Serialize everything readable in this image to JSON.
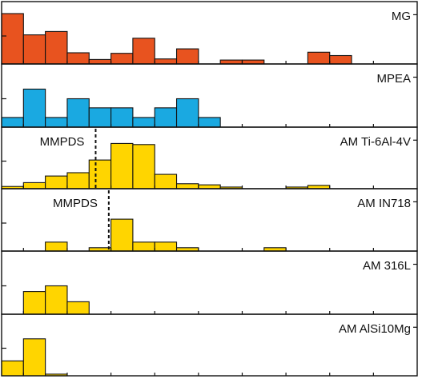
{
  "chart_data": {
    "type": "bar",
    "bin_width": 1,
    "x_range": [
      0,
      19
    ],
    "panels": [
      {
        "name": "MG",
        "color": "#e8531f",
        "ylim": [
          0,
          10
        ],
        "bins": [
          {
            "x": 0,
            "value": 9.0
          },
          {
            "x": 1,
            "value": 5.2
          },
          {
            "x": 2,
            "value": 5.8
          },
          {
            "x": 3,
            "value": 2.0
          },
          {
            "x": 4,
            "value": 0.8
          },
          {
            "x": 5,
            "value": 1.9
          },
          {
            "x": 6,
            "value": 4.6
          },
          {
            "x": 7,
            "value": 0.9
          },
          {
            "x": 8,
            "value": 2.7
          },
          {
            "x": 9,
            "value": 0.0
          },
          {
            "x": 10,
            "value": 0.7
          },
          {
            "x": 11,
            "value": 0.7
          },
          {
            "x": 12,
            "value": 0.0
          },
          {
            "x": 13,
            "value": 0.0
          },
          {
            "x": 14,
            "value": 2.1
          },
          {
            "x": 15,
            "value": 1.5
          }
        ]
      },
      {
        "name": "MPEA",
        "color": "#1aa9e1",
        "ylim": [
          0,
          10
        ],
        "bins": [
          {
            "x": 0,
            "value": 1.7
          },
          {
            "x": 1,
            "value": 6.7
          },
          {
            "x": 2,
            "value": 1.7
          },
          {
            "x": 3,
            "value": 5.0
          },
          {
            "x": 4,
            "value": 3.4
          },
          {
            "x": 5,
            "value": 3.4
          },
          {
            "x": 6,
            "value": 1.7
          },
          {
            "x": 7,
            "value": 3.4
          },
          {
            "x": 8,
            "value": 5.0
          },
          {
            "x": 9,
            "value": 1.7
          }
        ]
      },
      {
        "name": "AM Ti-6Al-4V",
        "color": "#ffd500",
        "ylim": [
          0,
          10
        ],
        "reference": {
          "label": "MMPDS",
          "x": 4.3
        },
        "bins": [
          {
            "x": 0,
            "value": 0.4
          },
          {
            "x": 1,
            "value": 1.1
          },
          {
            "x": 2,
            "value": 2.3
          },
          {
            "x": 3,
            "value": 2.9
          },
          {
            "x": 4,
            "value": 5.2
          },
          {
            "x": 5,
            "value": 8.2
          },
          {
            "x": 6,
            "value": 8.0
          },
          {
            "x": 7,
            "value": 2.6
          },
          {
            "x": 8,
            "value": 0.9
          },
          {
            "x": 9,
            "value": 0.7
          },
          {
            "x": 10,
            "value": 0.3
          },
          {
            "x": 11,
            "value": 0.0
          },
          {
            "x": 12,
            "value": 0.0
          },
          {
            "x": 13,
            "value": 0.3
          },
          {
            "x": 14,
            "value": 0.6
          }
        ]
      },
      {
        "name": "AM IN718",
        "color": "#ffd500",
        "ylim": [
          0,
          10
        ],
        "reference": {
          "label": "MMPDS",
          "x": 4.9
        },
        "bins": [
          {
            "x": 2,
            "value": 1.6
          },
          {
            "x": 4,
            "value": 0.6
          },
          {
            "x": 5,
            "value": 5.7
          },
          {
            "x": 6,
            "value": 1.6
          },
          {
            "x": 7,
            "value": 1.6
          },
          {
            "x": 8,
            "value": 0.6
          },
          {
            "x": 12,
            "value": 0.6
          }
        ]
      },
      {
        "name": "AM 316L",
        "color": "#ffd500",
        "ylim": [
          0,
          10
        ],
        "bins": [
          {
            "x": 1,
            "value": 4.0
          },
          {
            "x": 2,
            "value": 5.0
          },
          {
            "x": 3,
            "value": 2.2
          }
        ]
      },
      {
        "name": "AM AlSi10Mg",
        "color": "#ffd500",
        "ylim": [
          0,
          10
        ],
        "bins": [
          {
            "x": 0,
            "value": 2.7
          },
          {
            "x": 1,
            "value": 6.7
          },
          {
            "x": 2,
            "value": 0.3
          }
        ]
      }
    ]
  }
}
